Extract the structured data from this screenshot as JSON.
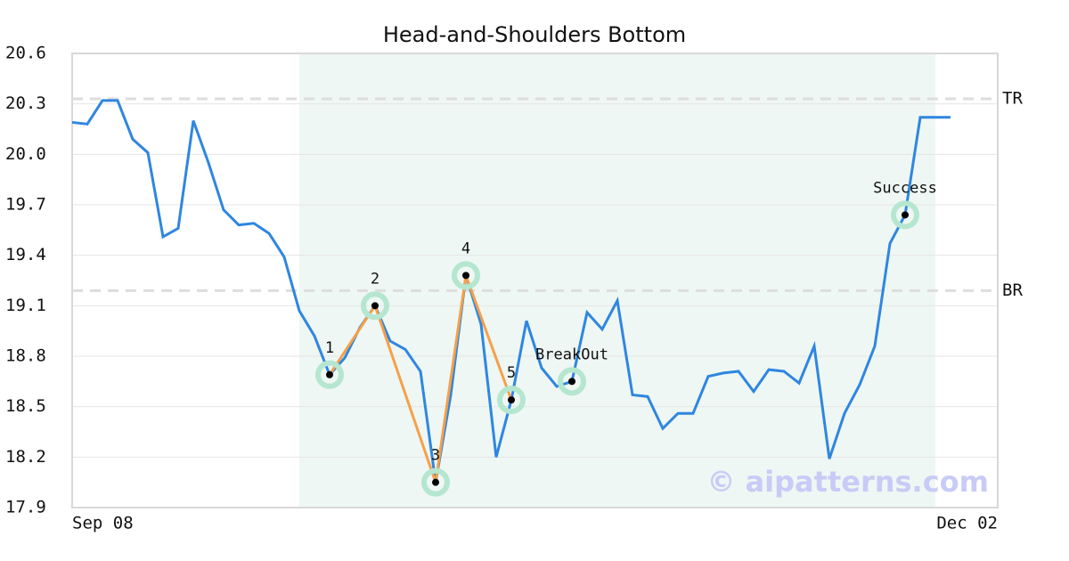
{
  "chart_data": {
    "type": "line",
    "title": "Head-and-Shoulders Bottom",
    "categories": [
      "Sep 08",
      null,
      null,
      null,
      null,
      null,
      null,
      null,
      null,
      null,
      null,
      null,
      null,
      null,
      null,
      null,
      null,
      null,
      null,
      null,
      null,
      null,
      null,
      null,
      null,
      null,
      null,
      null,
      null,
      null,
      null,
      null,
      null,
      null,
      null,
      null,
      null,
      null,
      null,
      null,
      null,
      null,
      null,
      null,
      null,
      null,
      null,
      null,
      null,
      null,
      null,
      null,
      null,
      null,
      null,
      null,
      null,
      null,
      "Dec 02"
    ],
    "values": [
      20.19,
      20.18,
      20.32,
      20.32,
      20.09,
      20.01,
      19.51,
      19.56,
      20.2,
      19.95,
      19.67,
      19.58,
      19.59,
      19.53,
      19.39,
      19.07,
      18.92,
      18.69,
      18.79,
      18.97,
      19.1,
      18.89,
      18.84,
      18.71,
      18.05,
      18.57,
      19.28,
      18.99,
      18.2,
      18.54,
      19.01,
      18.73,
      18.62,
      18.65,
      19.06,
      18.96,
      19.13,
      18.57,
      18.56,
      18.37,
      18.46,
      18.46,
      18.68,
      18.7,
      18.71,
      18.59,
      18.72,
      18.71,
      18.64,
      18.86,
      18.19,
      18.46,
      18.63,
      18.86,
      19.47,
      19.64,
      20.22,
      20.22,
      20.22
    ],
    "color": "#2f86e0",
    "pattern_color": "#f5a04a",
    "highlight": [
      15,
      57
    ],
    "highlight_color": "#eef7f3",
    "ylim": [
      17.9,
      20.6
    ],
    "yticks": [
      17.9,
      18.2,
      18.5,
      18.8,
      19.1,
      19.4,
      19.7,
      {
        "value": 20,
        "label": "20.0"
      },
      20.3,
      20.6
    ],
    "grid": true,
    "levels": [
      {
        "label": "TR",
        "value": 20.33
      },
      {
        "label": "BR",
        "value": 19.19
      }
    ],
    "pattern_points": [
      {
        "label": "1",
        "x": 17,
        "value": 18.69
      },
      {
        "label": "2",
        "x": 20,
        "value": 19.1
      },
      {
        "label": "3",
        "x": 24,
        "value": 18.05
      },
      {
        "label": "4",
        "x": 26,
        "value": 19.28
      },
      {
        "label": "5",
        "x": 29,
        "value": 18.54
      }
    ],
    "events": [
      {
        "label": "BreakOut",
        "x": 33,
        "value": 18.65
      },
      {
        "label": "Success",
        "x": 55,
        "value": 19.64
      }
    ],
    "watermark": "© aipatterns.com"
  }
}
